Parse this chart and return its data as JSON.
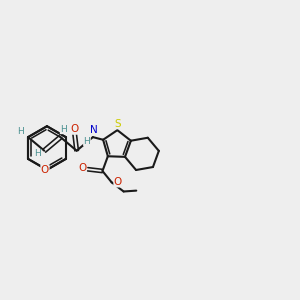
{
  "bg": "#eeeeee",
  "bc": "#1a1a1a",
  "S_col": "#cccc00",
  "O_col": "#cc2200",
  "N_col": "#0000cc",
  "H_col": "#4a9090",
  "lw": 1.5,
  "lw2": 1.15,
  "doff": 0.05,
  "afs": 7.5,
  "hfs": 6.5,
  "figsize": [
    3.0,
    3.0
  ],
  "dpi": 100,
  "xlim": [
    -4.0,
    3.5
  ],
  "ylim": [
    -2.2,
    2.2
  ]
}
